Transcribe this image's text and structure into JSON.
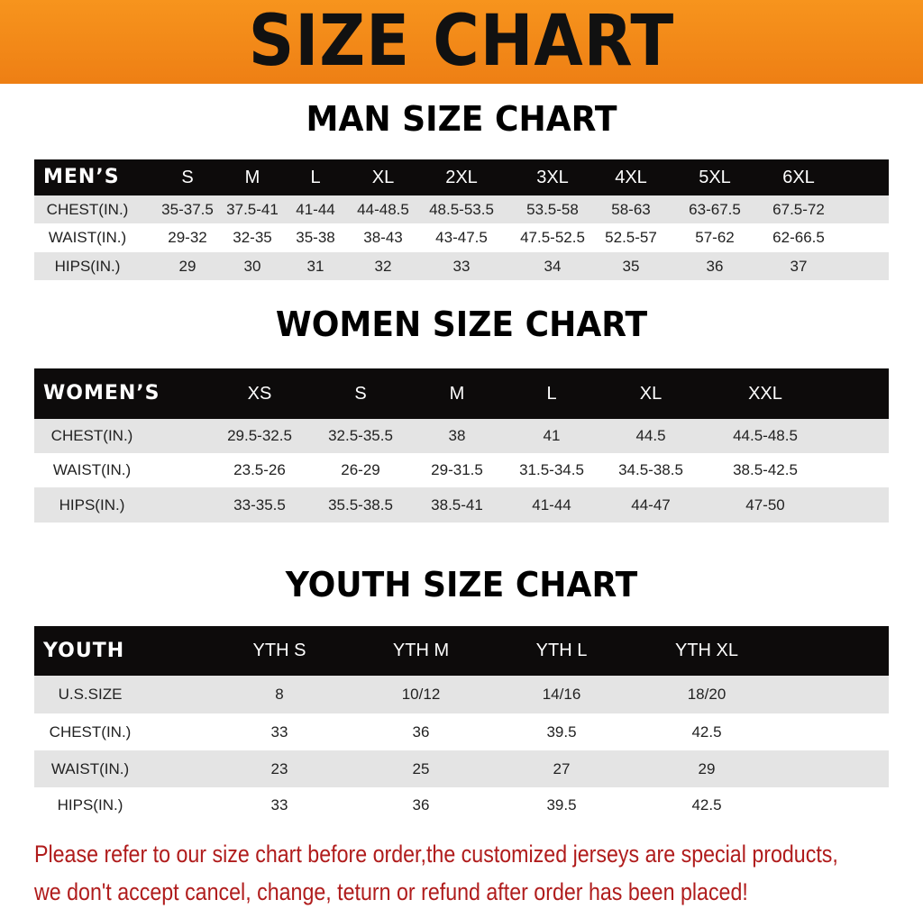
{
  "banner_title": "SIZE CHART",
  "men": {
    "title": "MAN SIZE CHART",
    "header": [
      "MEN’S",
      "S",
      "M",
      "L",
      "XL",
      "2XL",
      "3XL",
      "4XL",
      "5XL",
      "6XL"
    ],
    "rows": [
      [
        "CHEST(IN.)",
        "35-37.5",
        "37.5-41",
        "41-44",
        "44-48.5",
        "48.5-53.5",
        "53.5-58",
        "58-63",
        "63-67.5",
        "67.5-72"
      ],
      [
        "WAIST(IN.)",
        "29-32",
        "32-35",
        "35-38",
        "38-43",
        "43-47.5",
        "47.5-52.5",
        "52.5-57",
        "57-62",
        "62-66.5"
      ],
      [
        "HIPS(IN.)",
        "29",
        "30",
        "31",
        "32",
        "33",
        "34",
        "35",
        "36",
        "37"
      ]
    ]
  },
  "women": {
    "title": "WOMEN SIZE CHART",
    "header": [
      "WOMEN’S",
      "XS",
      "S",
      "M",
      "L",
      "XL",
      "XXL"
    ],
    "rows": [
      [
        "CHEST(IN.)",
        "29.5-32.5",
        "32.5-35.5",
        "38",
        "41",
        "44.5",
        "44.5-48.5"
      ],
      [
        "WAIST(IN.)",
        "23.5-26",
        "26-29",
        "29-31.5",
        "31.5-34.5",
        "34.5-38.5",
        "38.5-42.5"
      ],
      [
        "HIPS(IN.)",
        "33-35.5",
        "35.5-38.5",
        "38.5-41",
        "41-44",
        "44-47",
        "47-50"
      ]
    ]
  },
  "youth": {
    "title": "YOUTH SIZE CHART",
    "header": [
      "YOUTH",
      "YTH S",
      "YTH M",
      "YTH L",
      "YTH XL"
    ],
    "rows": [
      [
        "U.S.SIZE",
        "8",
        "10/12",
        "14/16",
        "18/20"
      ],
      [
        "CHEST(IN.)",
        "33",
        "36",
        "39.5",
        "42.5"
      ],
      [
        "WAIST(IN.)",
        "23",
        "25",
        "27",
        "29"
      ],
      [
        "HIPS(IN.)",
        "33",
        "36",
        "39.5",
        "42.5"
      ]
    ]
  },
  "notice": [
    "Please refer to our size chart before order,the customized jerseys are special products,",
    "we don't accept cancel, change, teturn or refund after order has been placed!"
  ],
  "colors": {
    "banner": "#f08a1a",
    "header_row": "#0d0b0b",
    "stripe": "#e4e4e4",
    "notice": "#b01c1c"
  }
}
